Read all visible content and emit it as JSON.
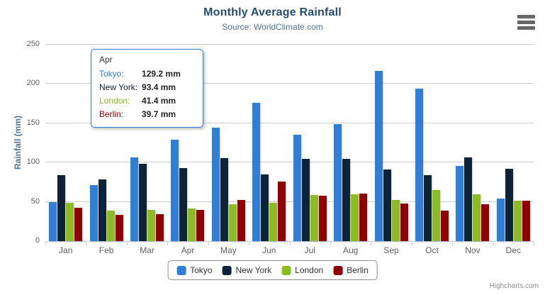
{
  "chart_data": {
    "type": "bar",
    "title": "Monthly Average Rainfall",
    "subtitle": "Source: WorldClimate.com",
    "xlabel": "",
    "ylabel": "Rainfall (mm)",
    "ylim": [
      0,
      250
    ],
    "yticks": [
      0,
      50,
      100,
      150,
      200,
      250
    ],
    "grid": true,
    "legend_position": "bottom",
    "categories": [
      "Jan",
      "Feb",
      "Mar",
      "Apr",
      "May",
      "Jun",
      "Jul",
      "Aug",
      "Sep",
      "Oct",
      "Nov",
      "Dec"
    ],
    "series": [
      {
        "name": "Tokyo",
        "color": "#2f7ed8",
        "values": [
          49.9,
          71.5,
          106.4,
          129.2,
          144.0,
          176.0,
          135.6,
          148.5,
          216.4,
          194.1,
          95.6,
          54.4
        ]
      },
      {
        "name": "New York",
        "color": "#0d233a",
        "values": [
          83.6,
          78.8,
          98.5,
          93.4,
          106.0,
          84.5,
          105.0,
          104.3,
          91.2,
          83.5,
          106.6,
          92.3
        ]
      },
      {
        "name": "London",
        "color": "#8bbc21",
        "values": [
          48.9,
          38.8,
          39.3,
          41.4,
          47.0,
          48.3,
          59.0,
          59.6,
          52.4,
          65.2,
          59.3,
          51.2
        ]
      },
      {
        "name": "Berlin",
        "color": "#910000",
        "values": [
          42.4,
          33.2,
          34.5,
          39.7,
          52.6,
          75.5,
          57.4,
          60.4,
          47.6,
          39.1,
          46.8,
          51.1
        ]
      }
    ]
  },
  "tooltip": {
    "header": "Apr",
    "border_color": "#2f7ed8",
    "rows": [
      {
        "name": "Tokyo:",
        "value": "129.2 mm",
        "color": "#2f7ed8"
      },
      {
        "name": "New York:",
        "value": "93.4 mm",
        "color": "#0d233a"
      },
      {
        "name": "London:",
        "value": "41.4 mm",
        "color": "#8bbc21"
      },
      {
        "name": "Berlin:",
        "value": "39.7 mm",
        "color": "#910000"
      }
    ]
  },
  "colors": {
    "title": "#274b6d",
    "subtitle": "#4d759e",
    "gridline": "#D0D0D0",
    "axis_line": "#C0D0E0",
    "axis_labels": "#606060"
  },
  "export_menu": {
    "icon": "hamburger-icon"
  },
  "credits": "Highcharts.com"
}
